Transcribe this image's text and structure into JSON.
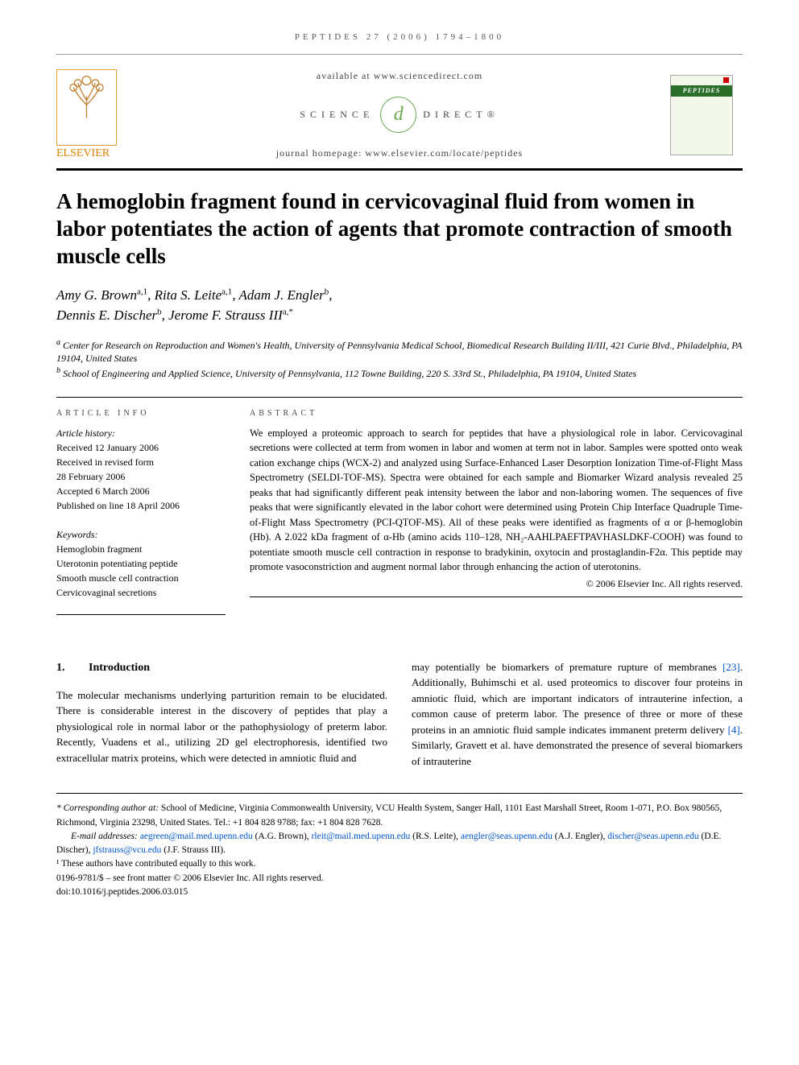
{
  "running_header": "peptides 27 (2006) 1794–1800",
  "masthead": {
    "available": "available at www.sciencedirect.com",
    "sd_left": "SCIENCE",
    "sd_right": "DIRECT®",
    "homepage": "journal homepage: www.elsevier.com/locate/peptides",
    "publisher": "ELSEVIER",
    "journal_cover": "PEPTIDES"
  },
  "title": "A hemoglobin fragment found in cervicovaginal fluid from women in labor potentiates the action of agents that promote contraction of smooth muscle cells",
  "authors_html": "Amy G. Brown<sup>a,1</sup>, Rita S. Leite<sup>a,1</sup>, Adam J. Engler<sup>b</sup>,<br>Dennis E. Discher<sup>b</sup>, Jerome F. Strauss III<sup>a,*</sup>",
  "affiliations": {
    "a": "Center for Research on Reproduction and Women's Health, University of Pennsylvania Medical School, Biomedical Research Building II/III, 421 Curie Blvd., Philadelphia, PA 19104, United States",
    "b": "School of Engineering and Applied Science, University of Pennsylvania, 112 Towne Building, 220 S. 33rd St., Philadelphia, PA 19104, United States"
  },
  "article_info": {
    "heading": "ARTICLE INFO",
    "history_label": "Article history:",
    "received": "Received 12 January 2006",
    "revised_label": "Received in revised form",
    "revised": "28 February 2006",
    "accepted": "Accepted 6 March 2006",
    "published": "Published on line 18 April 2006",
    "keywords_label": "Keywords:",
    "keywords": [
      "Hemoglobin fragment",
      "Uterotonin potentiating peptide",
      "Smooth muscle cell contraction",
      "Cervicovaginal secretions"
    ]
  },
  "abstract": {
    "heading": "ABSTRACT",
    "text": "We employed a proteomic approach to search for peptides that have a physiological role in labor. Cervicovaginal secretions were collected at term from women in labor and women at term not in labor. Samples were spotted onto weak cation exchange chips (WCX-2) and analyzed using Surface-Enhanced Laser Desorption Ionization Time-of-Flight Mass Spectrometry (SELDI-TOF-MS). Spectra were obtained for each sample and Biomarker Wizard analysis revealed 25 peaks that had significantly different peak intensity between the labor and non-laboring women. The sequences of five peaks that were significantly elevated in the labor cohort were determined using Protein Chip Interface Quadruple Time-of-Flight Mass Spectrometry (PCI-QTOF-MS). All of these peaks were identified as fragments of α or β-hemoglobin (Hb). A 2.022 kDa fragment of α-Hb (amino acids 110–128, NH₂-AAHLPAEFTPAVHASLDKF-COOH) was found to potentiate smooth muscle cell contraction in response to bradykinin, oxytocin and prostaglandin-F2α. This peptide may promote vasoconstriction and augment normal labor through enhancing the action of uterotonins.",
    "copyright": "© 2006 Elsevier Inc. All rights reserved."
  },
  "section1": {
    "num": "1.",
    "title": "Introduction",
    "col1": "The molecular mechanisms underlying parturition remain to be elucidated. There is considerable interest in the discovery of peptides that play a physiological role in normal labor or the pathophysiology of preterm labor. Recently, Vuadens et al., utilizing 2D gel electrophoresis, identified two extracellular matrix proteins, which were detected in amniotic fluid and",
    "col2_a": "may potentially be biomarkers of premature rupture of membranes ",
    "col2_ref1": "[23]",
    "col2_b": ". Additionally, Buhimschi et al. used proteomics to discover four proteins in amniotic fluid, which are important indicators of intrauterine infection, a common cause of preterm labor. The presence of three or more of these proteins in an amniotic fluid sample indicates immanent preterm delivery ",
    "col2_ref2": "[4]",
    "col2_c": ". Similarly, Gravett et al. have demonstrated the presence of several biomarkers of intrauterine"
  },
  "footnotes": {
    "corr_label": "* Corresponding author at:",
    "corr": " School of Medicine, Virginia Commonwealth University, VCU Health System, Sanger Hall, 1101 East Marshall Street, Room 1-071, P.O. Box 980565, Richmond, Virginia 23298, United States. Tel.: +1 804 828 9788; fax: +1 804 828 7628.",
    "email_label": "E-mail addresses: ",
    "emails": [
      {
        "addr": "aegreen@mail.med.upenn.edu",
        "who": " (A.G. Brown), "
      },
      {
        "addr": "rleit@mail.med.upenn.edu",
        "who": " (R.S. Leite), "
      },
      {
        "addr": "aengler@seas.upenn.edu",
        "who": " (A.J. Engler), "
      },
      {
        "addr": "discher@seas.upenn.edu",
        "who": " (D.E. Discher), "
      },
      {
        "addr": "jfstrauss@vcu.edu",
        "who": " (J.F. Strauss III)."
      }
    ],
    "equal": "¹ These authors have contributed equally to this work.",
    "issn": "0196-9781/$ – see front matter © 2006 Elsevier Inc. All rights reserved.",
    "doi": "doi:10.1016/j.peptides.2006.03.015"
  }
}
